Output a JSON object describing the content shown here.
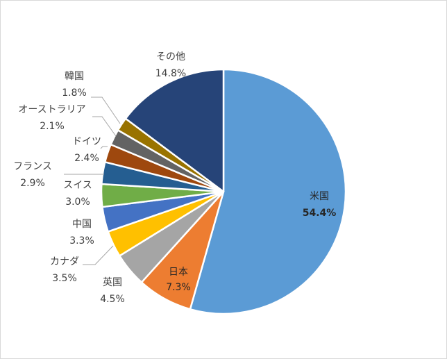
{
  "chart_data": {
    "type": "pie",
    "title": "",
    "slices": [
      {
        "label": "米国",
        "value": 54.4,
        "value_text": "54.4%",
        "color": "#5B9BD5"
      },
      {
        "label": "日本",
        "value": 7.3,
        "value_text": "7.3%",
        "color": "#ED7D31"
      },
      {
        "label": "英国",
        "value": 4.5,
        "value_text": "4.5%",
        "color": "#A5A5A5"
      },
      {
        "label": "カナダ",
        "value": 3.5,
        "value_text": "3.5%",
        "color": "#FFC000"
      },
      {
        "label": "中国",
        "value": 3.3,
        "value_text": "3.3%",
        "color": "#4472C4"
      },
      {
        "label": "スイス",
        "value": 3.0,
        "value_text": "3.0%",
        "color": "#70AD47"
      },
      {
        "label": "フランス",
        "value": 2.9,
        "value_text": "2.9%",
        "color": "#255E91"
      },
      {
        "label": "ドイツ",
        "value": 2.4,
        "value_text": "2.4%",
        "color": "#9E480E"
      },
      {
        "label": "オーストラリア",
        "value": 2.1,
        "value_text": "2.1%",
        "color": "#636363"
      },
      {
        "label": "韓国",
        "value": 1.8,
        "value_text": "1.8%",
        "color": "#997300"
      },
      {
        "label": "その他",
        "value": 14.8,
        "value_text": "14.8%",
        "color": "#264478"
      }
    ]
  }
}
